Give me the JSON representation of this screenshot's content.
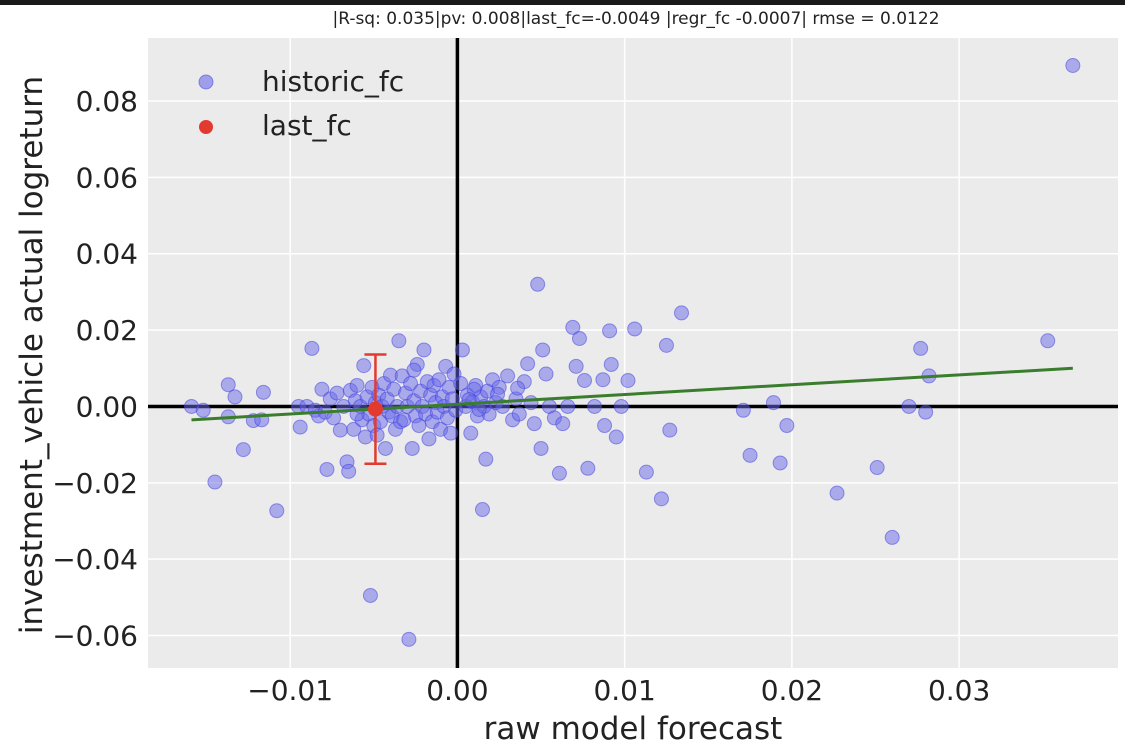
{
  "chart_data": {
    "type": "scatter",
    "title": "|R-sq: 0.035|pv: 0.008|last_fc=-0.0049 |regr_fc -0.0007| rmse = 0.0122",
    "xlabel": "raw model forecast",
    "ylabel": "investment_vehicle actual logreturn",
    "xlim": [
      -0.0185,
      0.0395
    ],
    "ylim": [
      -0.0685,
      0.0965
    ],
    "x_ticks": [
      -0.01,
      0.0,
      0.01,
      0.02,
      0.03
    ],
    "x_tick_labels": [
      "−0.01",
      "0.00",
      "0.01",
      "0.02",
      "0.03"
    ],
    "y_ticks": [
      0.08,
      0.06,
      0.04,
      0.02,
      0.0,
      -0.02,
      -0.04,
      -0.06
    ],
    "y_tick_labels": [
      "0.08",
      "0.06",
      "0.04",
      "0.02",
      "0.00",
      "−0.02",
      "−0.04",
      "−0.06"
    ],
    "grid": true,
    "legend_position": "top-left",
    "colors": {
      "background": "#ebebeb",
      "grid": "#ffffff",
      "historic": "#6a6aea",
      "historic_edge": "#3b3be0",
      "last": "#e23a2e",
      "regression": "#3a7d2c",
      "axes_lines": "#000000"
    },
    "series": [
      {
        "name": "historic_fc",
        "marker": "circle",
        "points": [
          [
            -0.0159,
            0.0
          ],
          [
            -0.0152,
            -0.001
          ],
          [
            -0.0145,
            -0.0198
          ],
          [
            -0.0137,
            0.0057
          ],
          [
            -0.0137,
            -0.0027
          ],
          [
            -0.0133,
            0.0025
          ],
          [
            -0.0128,
            -0.0113
          ],
          [
            -0.0122,
            -0.0037
          ],
          [
            -0.0117,
            -0.0035
          ],
          [
            -0.0116,
            0.0037
          ],
          [
            -0.0108,
            -0.0273
          ],
          [
            -0.0095,
            0.0
          ],
          [
            -0.0094,
            -0.0054
          ],
          [
            -0.009,
            0.0
          ],
          [
            -0.0087,
            0.0152
          ],
          [
            -0.0085,
            -0.001
          ],
          [
            -0.0083,
            -0.0025
          ],
          [
            -0.0081,
            0.0045
          ],
          [
            -0.0079,
            -0.0015
          ],
          [
            -0.0078,
            -0.0165
          ],
          [
            -0.0076,
            0.002
          ],
          [
            -0.0074,
            -0.003
          ],
          [
            -0.0072,
            0.0035
          ],
          [
            -0.007,
            -0.0062
          ],
          [
            -0.0068,
            0.0
          ],
          [
            -0.0066,
            -0.0145
          ],
          [
            -0.0065,
            -0.017
          ],
          [
            -0.0064,
            0.0042
          ],
          [
            -0.0062,
            -0.006
          ],
          [
            -0.0061,
            0.0015
          ],
          [
            -0.006,
            0.0055
          ],
          [
            -0.0058,
            0.0
          ],
          [
            -0.0057,
            -0.0035
          ],
          [
            -0.0056,
            0.0107
          ],
          [
            -0.0055,
            -0.008
          ],
          [
            -0.0054,
            0.0025
          ],
          [
            -0.0053,
            -0.002
          ],
          [
            -0.0052,
            -0.0495
          ],
          [
            -0.0051,
            0.005
          ],
          [
            -0.005,
            -0.005
          ],
          [
            -0.0049,
            0.001
          ],
          [
            -0.0048,
            -0.0075
          ],
          [
            -0.0047,
            0.003
          ],
          [
            -0.0046,
            -0.004
          ],
          [
            -0.0045,
            0.0
          ],
          [
            -0.0044,
            0.006
          ],
          [
            -0.0043,
            -0.011
          ],
          [
            -0.0042,
            0.002
          ],
          [
            -0.0041,
            -0.0015
          ],
          [
            -0.004,
            0.0082
          ],
          [
            -0.0039,
            -0.0025
          ],
          [
            -0.0038,
            0.0045
          ],
          [
            -0.0037,
            -0.006
          ],
          [
            -0.0036,
            0.0
          ],
          [
            -0.0035,
            0.0172
          ],
          [
            -0.0034,
            -0.004
          ],
          [
            -0.0033,
            0.008
          ],
          [
            -0.0032,
            -0.0035
          ],
          [
            -0.0031,
            0.0035
          ],
          [
            -0.003,
            0.0
          ],
          [
            -0.0029,
            -0.061
          ],
          [
            -0.0028,
            0.006
          ],
          [
            -0.0027,
            -0.011
          ],
          [
            -0.0026,
            0.0015
          ],
          [
            -0.0025,
            -0.0025
          ],
          [
            -0.0024,
            0.011
          ],
          [
            -0.0023,
            -0.005
          ],
          [
            -0.0022,
            0.004
          ],
          [
            -0.0021,
            0.0
          ],
          [
            -0.002,
            0.0148
          ],
          [
            -0.0019,
            -0.002
          ],
          [
            -0.0018,
            0.0065
          ],
          [
            -0.0017,
            -0.0085
          ],
          [
            -0.0016,
            0.003
          ],
          [
            -0.0015,
            -0.004
          ],
          [
            -0.0014,
            0.0055
          ],
          [
            -0.0013,
            0.001
          ],
          [
            -0.0012,
            -0.0015
          ],
          [
            -0.0011,
            0.007
          ],
          [
            -0.001,
            -0.006
          ],
          [
            -0.0009,
            0.0025
          ],
          [
            -0.0008,
            0.0
          ],
          [
            -0.0007,
            0.0105
          ],
          [
            -0.0006,
            -0.003
          ],
          [
            -0.0005,
            0.005
          ],
          [
            -0.0004,
            -0.007
          ],
          [
            -0.0003,
            0.002
          ],
          [
            -0.0002,
            0.0085
          ],
          [
            -0.0001,
            -0.001
          ],
          [
            0.0002,
            0.006
          ],
          [
            0.0003,
            0.0148
          ],
          [
            0.0005,
            0.0
          ],
          [
            0.0006,
            0.003
          ],
          [
            0.0008,
            -0.007
          ],
          [
            0.0009,
            0.0012
          ],
          [
            0.0011,
            0.0055
          ],
          [
            0.0012,
            -0.0025
          ],
          [
            0.0014,
            0.0025
          ],
          [
            0.0015,
            -0.027
          ],
          [
            0.0016,
            0.0
          ],
          [
            0.0017,
            -0.0138
          ],
          [
            0.0018,
            0.004
          ],
          [
            0.0019,
            -0.002
          ],
          [
            0.0021,
            0.007
          ],
          [
            0.0023,
            0.001
          ],
          [
            0.0025,
            0.005
          ],
          [
            0.0027,
            0.0
          ],
          [
            0.003,
            0.008
          ],
          [
            0.0033,
            -0.0035
          ],
          [
            0.0035,
            0.002
          ],
          [
            0.0037,
            -0.002
          ],
          [
            0.004,
            0.0065
          ],
          [
            0.0042,
            0.0112
          ],
          [
            0.0044,
            0.001
          ],
          [
            0.0046,
            -0.0045
          ],
          [
            0.0048,
            0.032
          ],
          [
            0.005,
            -0.011
          ],
          [
            0.0051,
            0.0148
          ],
          [
            0.0053,
            0.0085
          ],
          [
            0.0055,
            0.0
          ],
          [
            0.0058,
            -0.003
          ],
          [
            0.0061,
            -0.0175
          ],
          [
            0.0063,
            -0.0045
          ],
          [
            0.0066,
            0.0
          ],
          [
            0.0069,
            0.0207
          ],
          [
            0.0071,
            0.0105
          ],
          [
            0.0073,
            0.0178
          ],
          [
            0.0076,
            0.0068
          ],
          [
            0.0078,
            -0.0162
          ],
          [
            0.0082,
            0.0
          ],
          [
            0.0087,
            0.007
          ],
          [
            0.0088,
            -0.005
          ],
          [
            0.0091,
            0.0198
          ],
          [
            0.0092,
            0.011
          ],
          [
            0.0095,
            -0.008
          ],
          [
            0.0098,
            0.0
          ],
          [
            0.0102,
            0.0068
          ],
          [
            0.0106,
            0.0203
          ],
          [
            0.0113,
            -0.0172
          ],
          [
            0.0122,
            -0.0242
          ],
          [
            0.0125,
            0.016
          ],
          [
            0.0127,
            -0.0062
          ],
          [
            0.0134,
            0.0245
          ],
          [
            0.0171,
            -0.001
          ],
          [
            0.0175,
            -0.0128
          ],
          [
            0.0189,
            0.001
          ],
          [
            0.0193,
            -0.0148
          ],
          [
            0.0197,
            -0.005
          ],
          [
            0.0227,
            -0.0227
          ],
          [
            0.0251,
            -0.016
          ],
          [
            0.026,
            -0.0343
          ],
          [
            0.027,
            0.0
          ],
          [
            0.0277,
            0.0152
          ],
          [
            0.028,
            -0.0015
          ],
          [
            0.0282,
            0.008
          ],
          [
            0.0353,
            0.0172
          ],
          [
            0.0368,
            0.0893
          ],
          [
            -0.0026,
            0.0095
          ],
          [
            0.001,
            0.0045
          ],
          [
            -0.006,
            -0.002
          ],
          [
            0.0007,
            0.0018
          ],
          [
            0.0013,
            -0.0008
          ],
          [
            0.0024,
            0.0032
          ],
          [
            0.0036,
            0.0048
          ]
        ]
      },
      {
        "name": "last_fc",
        "marker": "circle",
        "points": [
          [
            -0.0049,
            -0.0007
          ]
        ],
        "error_bar": [
          -0.015,
          0.0136
        ]
      },
      {
        "name": "regression",
        "type": "line",
        "points": [
          [
            -0.0159,
            -0.0035
          ],
          [
            0.0368,
            0.01
          ]
        ]
      }
    ],
    "reference_lines": {
      "x": 0.0,
      "y": 0.0
    },
    "legend": [
      {
        "label": "historic_fc",
        "series": "historic_fc"
      },
      {
        "label": "last_fc",
        "series": "last_fc"
      }
    ]
  }
}
